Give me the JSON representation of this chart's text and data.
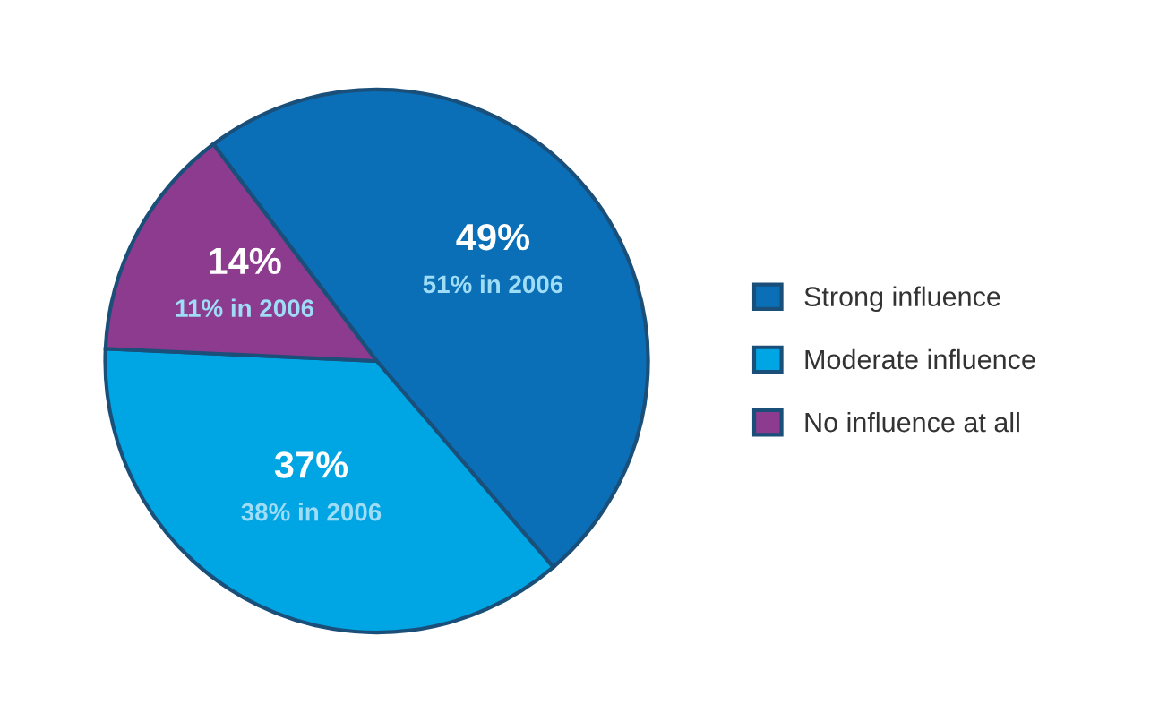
{
  "chart_data": {
    "type": "pie",
    "categories": [
      "Strong influence",
      "Moderate influence",
      "No influence at all"
    ],
    "values": [
      49,
      37,
      14
    ],
    "colors": [
      "#0b6fb7",
      "#00a5e3",
      "#8c3b8f"
    ],
    "value_labels": [
      "49%",
      "37%",
      "14%"
    ],
    "annotations": [
      "51% in 2006",
      "38% in 2006",
      "11% in 2006"
    ],
    "legend": "right"
  }
}
